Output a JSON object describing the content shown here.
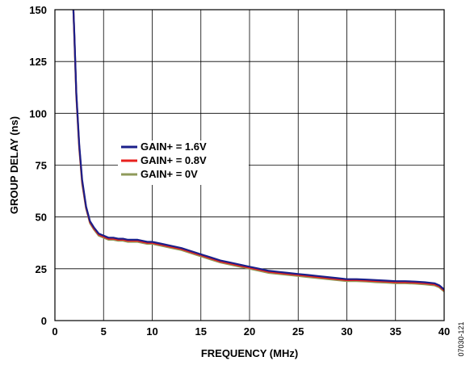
{
  "chart_data": {
    "type": "line",
    "title": "",
    "xlabel": "FREQUENCY (MHz)",
    "ylabel": "GROUP DELAY (ns)",
    "xlim": [
      0,
      40
    ],
    "ylim": [
      0,
      150
    ],
    "x_ticks": [
      0,
      5,
      10,
      15,
      20,
      25,
      30,
      35,
      40
    ],
    "y_ticks": [
      0,
      25,
      50,
      75,
      100,
      125,
      150
    ],
    "grid": true,
    "legend_position": "center-left",
    "series": [
      {
        "name": "GAIN+ = 1.6V",
        "color": "#1b1f8a",
        "x": [
          1.9,
          2.0,
          2.2,
          2.5,
          2.8,
          3.2,
          3.6,
          4.0,
          4.5,
          5.0,
          5.5,
          6.0,
          6.5,
          7.0,
          7.5,
          8.0,
          8.5,
          9.0,
          9.5,
          10,
          11,
          12,
          13,
          14,
          15,
          16,
          17,
          18,
          19,
          20,
          21,
          22,
          23,
          24,
          25,
          26,
          27,
          28,
          29,
          30,
          31,
          32,
          33,
          34,
          35,
          36,
          37,
          38,
          39,
          39.5,
          40
        ],
        "y": [
          150,
          138,
          110,
          85,
          68,
          55,
          48,
          45,
          42,
          41,
          40,
          40,
          39.5,
          39.5,
          39,
          39,
          39,
          38.5,
          38,
          38,
          37,
          36,
          35,
          33.5,
          32,
          30.5,
          29,
          28,
          27,
          26,
          25,
          24,
          23.5,
          23,
          22.5,
          22,
          21.5,
          21,
          20.5,
          20,
          20,
          19.8,
          19.5,
          19.3,
          19,
          19,
          18.8,
          18.5,
          18,
          17,
          15
        ]
      },
      {
        "name": "GAIN+ = 0.8V",
        "color": "#e8201e",
        "x": [
          1.9,
          2.0,
          2.2,
          2.5,
          2.8,
          3.2,
          3.6,
          4.0,
          4.5,
          5.0,
          5.5,
          6.0,
          6.5,
          7.0,
          7.5,
          8.0,
          8.5,
          9.0,
          9.5,
          10,
          11,
          12,
          13,
          14,
          15,
          16,
          17,
          18,
          19,
          20,
          21,
          22,
          23,
          24,
          25,
          26,
          27,
          28,
          29,
          30,
          31,
          32,
          33,
          34,
          35,
          36,
          37,
          38,
          39,
          39.5,
          40
        ],
        "y": [
          150,
          137,
          109,
          84,
          67,
          54.5,
          47.5,
          44.5,
          41.5,
          40.5,
          39.5,
          39.5,
          39,
          39,
          38.5,
          38.5,
          38.5,
          38,
          37.5,
          37.5,
          36.5,
          35.5,
          34.5,
          33,
          31.5,
          30,
          28.5,
          27.5,
          26.5,
          25.5,
          24.5,
          23.5,
          23,
          22.5,
          22,
          21.5,
          21,
          20.5,
          20,
          19.5,
          19.5,
          19.3,
          19,
          18.8,
          18.5,
          18.5,
          18.3,
          18,
          17.5,
          16.5,
          14.5
        ]
      },
      {
        "name": "GAIN+ = 0V",
        "color": "#8f9a5a",
        "x": [
          1.9,
          2.0,
          2.2,
          2.5,
          2.8,
          3.2,
          3.6,
          4.0,
          4.5,
          5.0,
          5.5,
          6.0,
          6.5,
          7.0,
          7.5,
          8.0,
          8.5,
          9.0,
          9.5,
          10,
          11,
          12,
          13,
          14,
          15,
          16,
          17,
          18,
          19,
          20,
          21,
          22,
          23,
          24,
          25,
          26,
          27,
          28,
          29,
          30,
          31,
          32,
          33,
          34,
          35,
          36,
          37,
          38,
          39,
          39.5,
          40
        ],
        "y": [
          150,
          136,
          108,
          83,
          66,
          54,
          47,
          44,
          41,
          40,
          39,
          39,
          38.5,
          38.5,
          38,
          38,
          38,
          37.5,
          37,
          37,
          36,
          35,
          34,
          32.5,
          31,
          29.5,
          28,
          27,
          26,
          25,
          24,
          23,
          22.5,
          22,
          21.5,
          21,
          20.5,
          20,
          19.5,
          19,
          19,
          18.8,
          18.5,
          18.3,
          18,
          18,
          17.8,
          17.5,
          17,
          16,
          14
        ]
      }
    ]
  },
  "figure_id": "07030-121"
}
